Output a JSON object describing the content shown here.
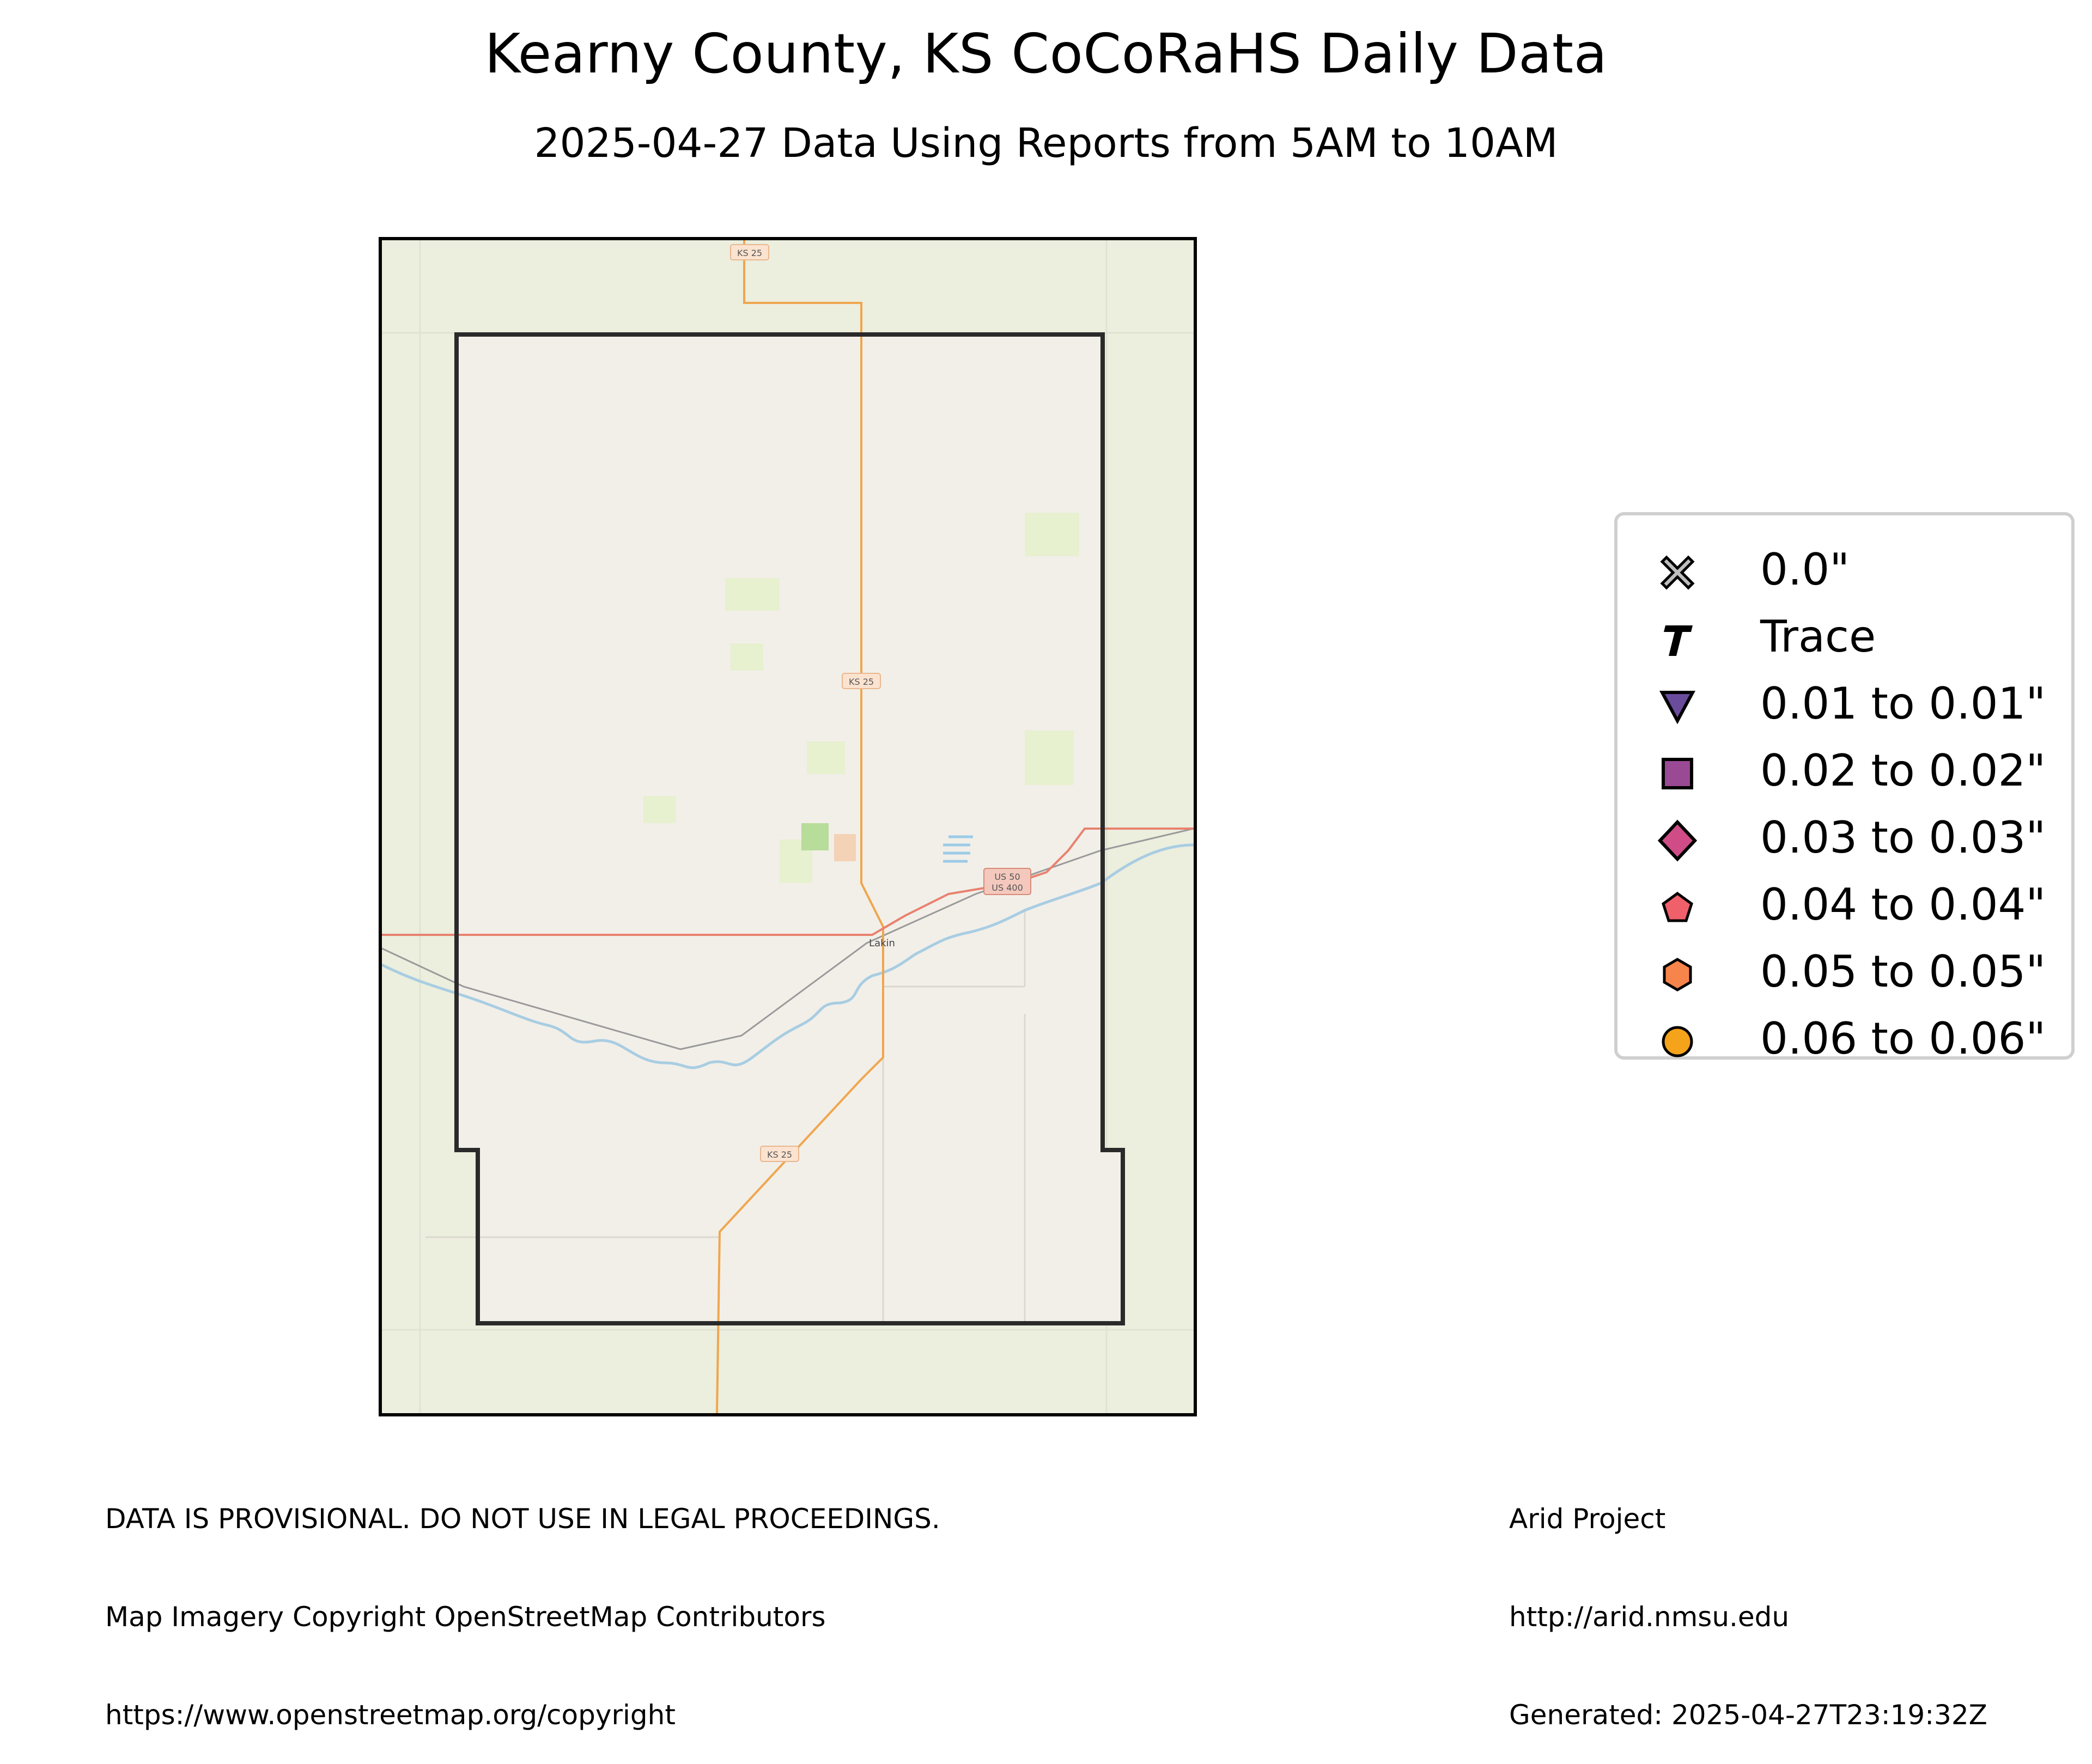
{
  "title": "Kearny County, KS CoCoRaHS Daily Data",
  "subtitle": "2025-04-27 Data Using Reports from 5AM to 10AM",
  "map": {
    "road_labels": [
      "KS 25",
      "KS 25",
      "KS 25",
      "US 50",
      "US 400"
    ],
    "town_label": "Lakin",
    "colors": {
      "land_outside": "#eceede",
      "land_inside": "#f2efe9",
      "county_border": "#2a2a2a",
      "highway": "#f0a64e",
      "us_highway": "#e8826f",
      "river": "#a8cde2",
      "rail": "#9a9a9a",
      "park_green": "#cfe6b4"
    }
  },
  "legend": {
    "items": [
      {
        "label": "0.0\"",
        "icon": "x-marker-icon",
        "color": "#bdbdbd"
      },
      {
        "label": "Trace",
        "icon": "trace-t-icon",
        "color": "#000000"
      },
      {
        "label": "0.01 to 0.01\"",
        "icon": "triangle-down-icon",
        "color": "#6a4c9c"
      },
      {
        "label": "0.02 to 0.02\"",
        "icon": "square-icon",
        "color": "#9a4a94"
      },
      {
        "label": "0.03 to 0.03\"",
        "icon": "diamond-icon",
        "color": "#cf4c86"
      },
      {
        "label": "0.04 to 0.04\"",
        "icon": "pentagon-icon",
        "color": "#f0606a"
      },
      {
        "label": "0.05 to 0.05\"",
        "icon": "hexagon-icon",
        "color": "#f7844b"
      },
      {
        "label": "0.06 to 0.06\"",
        "icon": "circle-icon",
        "color": "#f5a31b"
      }
    ]
  },
  "footer": {
    "left": [
      "DATA IS PROVISIONAL. DO NOT USE IN LEGAL PROCEEDINGS.",
      "Map Imagery Copyright OpenStreetMap Contributors",
      "https://www.openstreetmap.org/copyright"
    ],
    "right": [
      "Arid Project",
      "http://arid.nmsu.edu",
      "Generated: 2025-04-27T23:19:32Z"
    ]
  }
}
